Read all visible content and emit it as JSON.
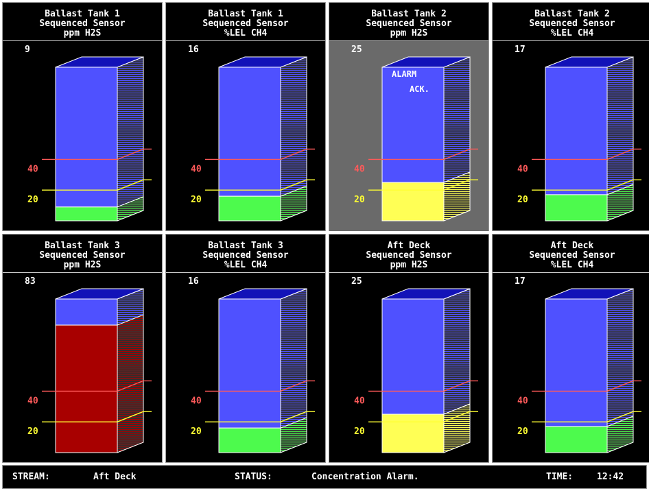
{
  "colors": {
    "tank_blue": "#4f51ff",
    "tank_top": "#1212b8",
    "level_green": "#4dfa4d",
    "level_yellow": "#ffff55",
    "level_red": "#a80000",
    "line_red": "#ff5a5a",
    "line_yellow": "#ffff33"
  },
  "panels": [
    {
      "title": "Ballast Tank 1",
      "subtitle": "Sequenced Sensor",
      "units": "ppm H2S",
      "value": "9",
      "level": 0.09,
      "state": "normal",
      "high_label": "40",
      "low_label": "20",
      "alarm_text": "",
      "ack_text": ""
    },
    {
      "title": "Ballast Tank 1",
      "subtitle": "Sequenced Sensor",
      "units": "%LEL CH4",
      "value": "16",
      "level": 0.16,
      "state": "normal",
      "high_label": "40",
      "low_label": "20",
      "alarm_text": "",
      "ack_text": ""
    },
    {
      "title": "Ballast Tank 2",
      "subtitle": "Sequenced Sensor",
      "units": "ppm H2S",
      "value": "25",
      "level": 0.25,
      "state": "warning",
      "high_label": "40",
      "low_label": "20",
      "alarm_text": "ALARM",
      "ack_text": "ACK."
    },
    {
      "title": "Ballast Tank 2",
      "subtitle": "Sequenced Sensor",
      "units": "%LEL CH4",
      "value": "17",
      "level": 0.17,
      "state": "normal",
      "high_label": "40",
      "low_label": "20",
      "alarm_text": "",
      "ack_text": ""
    },
    {
      "title": "Ballast Tank 3",
      "subtitle": "Sequenced Sensor",
      "units": "ppm H2S",
      "value": "83",
      "level": 0.83,
      "state": "alarm",
      "high_label": "40",
      "low_label": "20",
      "alarm_text": "",
      "ack_text": ""
    },
    {
      "title": "Ballast Tank 3",
      "subtitle": "Sequenced Sensor",
      "units": "%LEL CH4",
      "value": "16",
      "level": 0.16,
      "state": "normal",
      "high_label": "40",
      "low_label": "20",
      "alarm_text": "",
      "ack_text": ""
    },
    {
      "title": "Aft Deck",
      "subtitle": "Sequenced Sensor",
      "units": "ppm H2S",
      "value": "25",
      "level": 0.25,
      "state": "warning",
      "high_label": "40",
      "low_label": "20",
      "alarm_text": "",
      "ack_text": ""
    },
    {
      "title": "Aft Deck",
      "subtitle": "Sequenced Sensor",
      "units": "%LEL CH4",
      "value": "17",
      "level": 0.17,
      "state": "normal",
      "high_label": "40",
      "low_label": "20",
      "alarm_text": "",
      "ack_text": ""
    }
  ],
  "status_bar": {
    "stream_label": "STREAM:",
    "stream_value": "Aft Deck",
    "status_label": "STATUS:",
    "status_value": "Concentration Alarm.",
    "time_label": "TIME:",
    "time_value": "12:42"
  }
}
